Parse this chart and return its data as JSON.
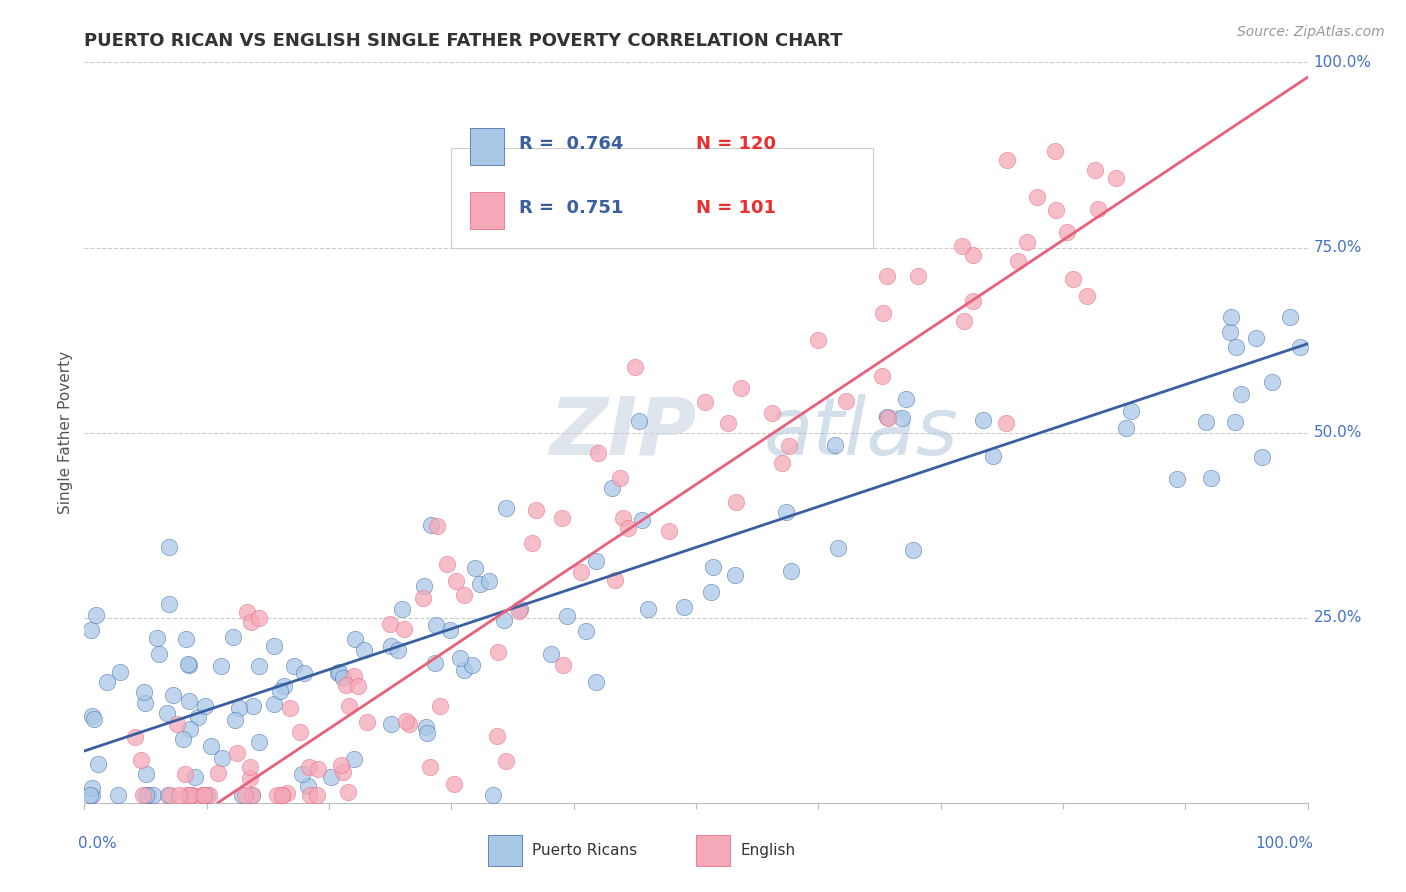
{
  "title": "PUERTO RICAN VS ENGLISH SINGLE FATHER POVERTY CORRELATION CHART",
  "source": "Source: ZipAtlas.com",
  "ylabel": "Single Father Poverty",
  "watermark_zip": "ZIP",
  "watermark_atlas": "atlas",
  "blue_R": 0.764,
  "blue_N": 120,
  "pink_R": 0.751,
  "pink_N": 101,
  "blue_color": "#A8C8E8",
  "pink_color": "#F4A8B8",
  "blue_line_color": "#3A5FA0",
  "pink_line_color": "#E8607A",
  "title_color": "#333333",
  "legend_R_color": "#3A5FA0",
  "legend_N_color": "#E83030",
  "axis_label_color": "#4472C4",
  "blue_slope": 0.55,
  "blue_intercept": 0.07,
  "pink_slope": 1.1,
  "pink_intercept": -0.12,
  "ytick_labels": [
    "25.0%",
    "50.0%",
    "75.0%",
    "100.0%"
  ],
  "ytick_values": [
    0.25,
    0.5,
    0.75,
    1.0
  ],
  "grid_color": "#CCCCCC",
  "background_color": "#FFFFFF"
}
